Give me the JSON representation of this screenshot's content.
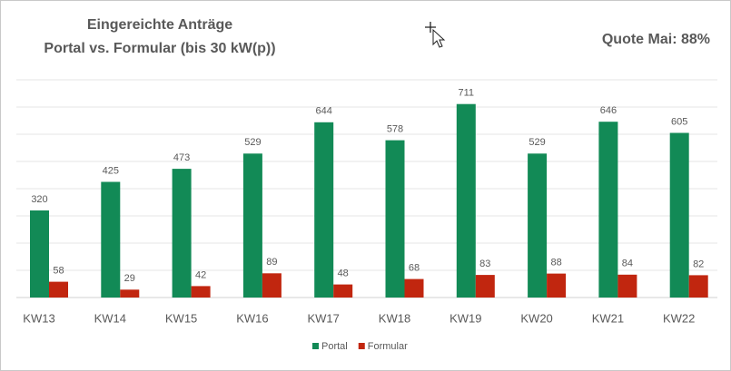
{
  "chart_data": {
    "type": "bar",
    "title": [
      "Eingereichte Anträge",
      "Portal vs. Formular (bis 30 kW(p))"
    ],
    "annotation": "Quote Mai: 88%",
    "categories": [
      "KW13",
      "KW14",
      "KW15",
      "KW16",
      "KW17",
      "KW18",
      "KW19",
      "KW20",
      "KW21",
      "KW22"
    ],
    "series": [
      {
        "name": "Portal",
        "color": "#128a56",
        "values": [
          320,
          425,
          473,
          529,
          644,
          578,
          711,
          529,
          646,
          605
        ]
      },
      {
        "name": "Formular",
        "color": "#c1260f",
        "values": [
          58,
          29,
          42,
          89,
          48,
          68,
          83,
          88,
          84,
          82
        ]
      }
    ],
    "ylim": [
      0,
      800
    ],
    "yticks": [
      0,
      100,
      200,
      300,
      400,
      500,
      600,
      700,
      800
    ],
    "grid": true,
    "legend": "bottom"
  }
}
